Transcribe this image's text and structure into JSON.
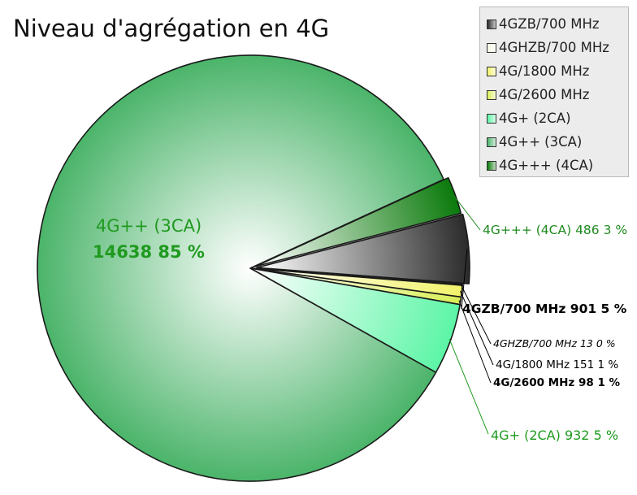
{
  "chart_data": {
    "type": "pie",
    "title": "Niveau d'agrégation en 4G",
    "legend_position": "top-right",
    "slices": [
      {
        "name": "4GZB/700 MHz",
        "value": 901,
        "percent": "5 %",
        "color": "#2b2b2b",
        "label_color": "#000000",
        "label": "4GZB/700 MHz 901 5 %"
      },
      {
        "name": "4GHZB/700 MHz",
        "value": 13,
        "percent": "0 %",
        "color": "#f7f7e2",
        "label_color": "#000000",
        "label": "4GHZB/700 MHz 13 0 %"
      },
      {
        "name": "4G/1800 MHz",
        "value": 151,
        "percent": "1 %",
        "color": "#f2f26a",
        "label_color": "#000000",
        "label": "4G/1800 MHz 151 1 %"
      },
      {
        "name": "4G/2600 MHz",
        "value": 98,
        "percent": "1 %",
        "color": "#d9ee57",
        "label_color": "#000000",
        "label": "4G/2600 MHz 98 1 %"
      },
      {
        "name": "4G+ (2CA)",
        "value": 932,
        "percent": "5 %",
        "color": "#5cf5a6",
        "label_color": "#1f9a1f",
        "label": "4G+ (2CA) 932 5 %"
      },
      {
        "name": "4G++ (3CA)",
        "value": 14638,
        "percent": "85 %",
        "color": "#4bb46a",
        "label_color": "#1f9a1f",
        "label_line1": "4G++ (3CA)",
        "label_line2": "14638 85 %"
      },
      {
        "name": "4G+++ (4CA)",
        "value": 486,
        "percent": "3 %",
        "color": "#0b7a0b",
        "label_color": "#1f8a1f",
        "label": "4G+++ (4CA) 486 3 %"
      }
    ]
  }
}
